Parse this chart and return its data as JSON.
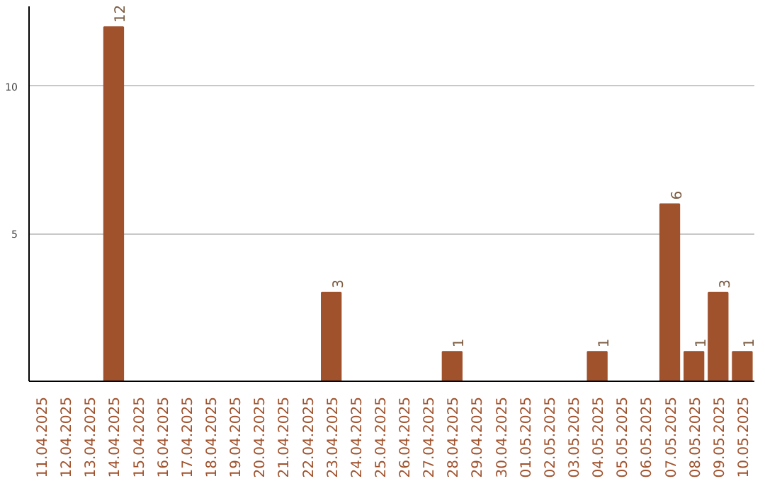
{
  "chart_data": {
    "type": "bar",
    "categories": [
      "11.04.2025",
      "12.04.2025",
      "13.04.2025",
      "14.04.2025",
      "15.04.2025",
      "16.04.2025",
      "17.04.2025",
      "18.04.2025",
      "19.04.2025",
      "20.04.2025",
      "21.04.2025",
      "22.04.2025",
      "23.04.2025",
      "24.04.2025",
      "25.04.2025",
      "26.04.2025",
      "27.04.2025",
      "28.04.2025",
      "29.04.2025",
      "30.04.2025",
      "01.05.2025",
      "02.05.2025",
      "03.05.2025",
      "04.05.2025",
      "05.05.2025",
      "06.05.2025",
      "07.05.2025",
      "08.05.2025",
      "09.05.2025",
      "10.05.2025"
    ],
    "values": [
      0,
      0,
      0,
      12,
      0,
      0,
      0,
      0,
      0,
      0,
      0,
      0,
      3,
      0,
      0,
      0,
      0,
      1,
      0,
      0,
      0,
      0,
      0,
      1,
      0,
      0,
      6,
      1,
      3,
      1
    ],
    "value_labels": [
      null,
      null,
      null,
      "12",
      null,
      null,
      null,
      null,
      null,
      null,
      null,
      null,
      "3",
      null,
      null,
      null,
      null,
      "1",
      null,
      null,
      null,
      null,
      null,
      "1",
      null,
      null,
      "6",
      "1",
      "3",
      "1"
    ],
    "color": "#a0522d",
    "ylim": [
      0,
      12.7
    ],
    "yticks": [
      5,
      10
    ],
    "grid": "y"
  }
}
